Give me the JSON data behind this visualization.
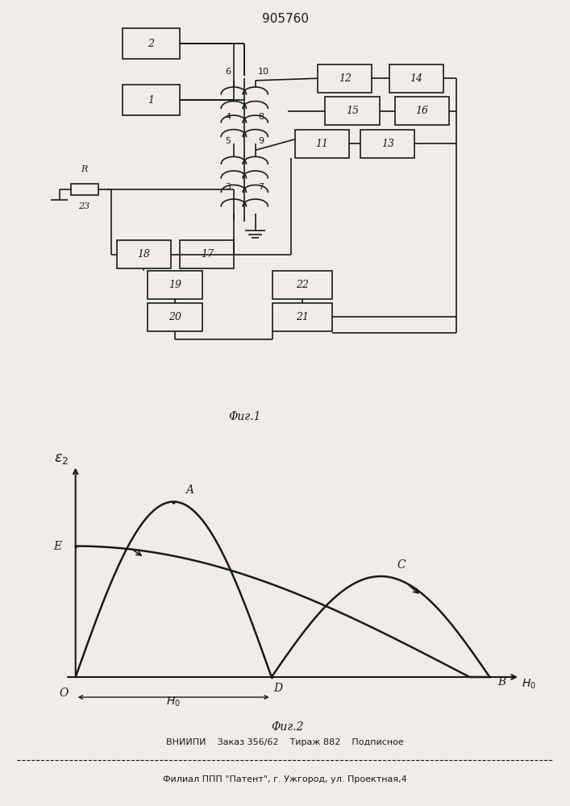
{
  "title": "905760",
  "fig1_caption": "Φиг.1",
  "fig2_caption": "Φиг.2",
  "footer_line1": "ВНИИПИ    Заказ 356/62    Тираж 882    Подписное",
  "footer_line2": "Филиал ППП \"Патент\", г. Ужгород, ул. Проектная,4",
  "bg_color": "#f0ede8",
  "line_color": "#1a1a1a"
}
